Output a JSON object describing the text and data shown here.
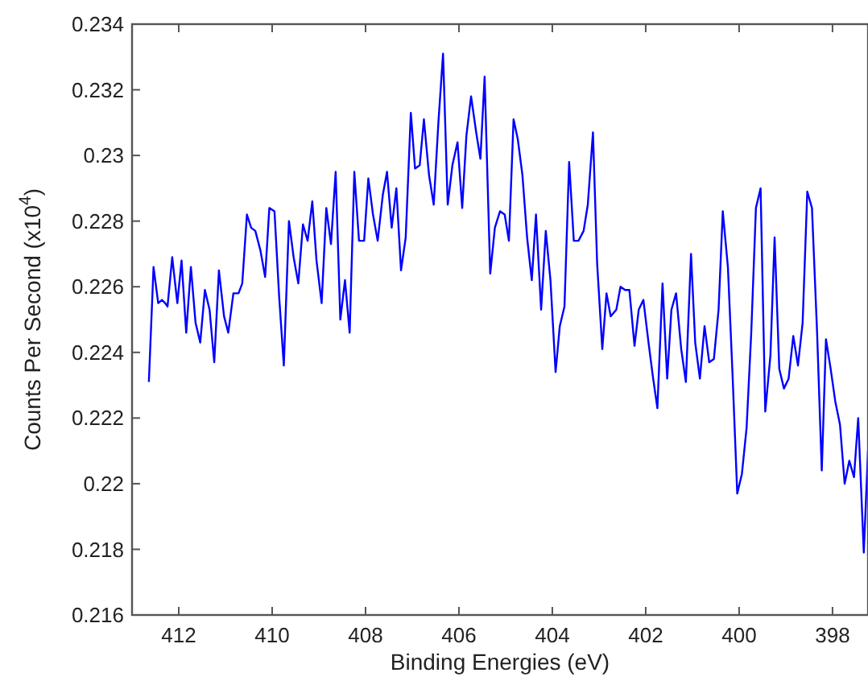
{
  "chart_data": {
    "type": "line",
    "xlabel": "Binding Energies (eV)",
    "ylabel": "Counts Per Second (x10$^{4}$)",
    "xlim": [
      413,
      397.24
    ],
    "xticks": [
      412,
      410,
      408,
      406,
      404,
      402,
      400,
      398
    ],
    "ylim": [
      0.216,
      0.234
    ],
    "yticks": [
      0.216,
      0.218,
      0.22,
      0.222,
      0.224,
      0.226,
      0.228,
      0.23,
      0.232,
      0.234
    ],
    "grid": false,
    "marker": "none",
    "line_style": "solid",
    "series": [
      {
        "color": "#0000ff",
        "x": [
          412.64,
          412.54,
          412.44,
          412.36,
          412.29,
          412.24,
          412.14,
          412.03,
          411.94,
          411.84,
          411.74,
          411.64,
          411.54,
          411.44,
          411.34,
          411.24,
          411.14,
          411.03,
          410.94,
          410.83,
          410.72,
          410.64,
          410.54,
          410.45,
          410.36,
          410.25,
          410.15,
          410.06,
          409.95,
          409.85,
          409.75,
          409.64,
          409.54,
          409.44,
          409.34,
          409.24,
          409.14,
          409.05,
          408.94,
          408.84,
          408.74,
          408.64,
          408.54,
          408.44,
          408.34,
          408.24,
          408.14,
          408.03,
          407.94,
          407.84,
          407.74,
          407.63,
          407.54,
          407.44,
          407.34,
          407.24,
          407.14,
          407.03,
          406.94,
          406.84,
          406.75,
          406.64,
          406.54,
          406.44,
          406.34,
          406.24,
          406.14,
          406.03,
          405.93,
          405.84,
          405.74,
          405.63,
          405.54,
          405.45,
          405.33,
          405.23,
          405.12,
          405.02,
          404.93,
          404.83,
          404.74,
          404.64,
          404.54,
          404.44,
          404.35,
          404.24,
          404.14,
          404.04,
          403.93,
          403.84,
          403.74,
          403.64,
          403.54,
          403.44,
          403.33,
          403.24,
          403.13,
          403.04,
          402.93,
          402.84,
          402.75,
          402.63,
          402.54,
          402.44,
          402.35,
          402.24,
          402.15,
          402.05,
          401.94,
          401.85,
          401.75,
          401.64,
          401.54,
          401.45,
          401.35,
          401.24,
          401.14,
          401.03,
          400.94,
          400.84,
          400.74,
          400.64,
          400.54,
          400.44,
          400.35,
          400.24,
          400.14,
          400.04,
          399.94,
          399.84,
          399.74,
          399.64,
          399.54,
          399.44,
          399.33,
          399.24,
          399.14,
          399.04,
          398.94,
          398.84,
          398.74,
          398.64,
          398.54,
          398.44,
          398.33,
          398.23,
          398.14,
          398.04,
          397.94,
          397.84,
          397.74,
          397.64,
          397.54,
          397.45,
          397.33,
          397.24
        ],
        "values": [
          0.2231,
          0.2266,
          0.2255,
          0.2256,
          0.2255,
          0.2254,
          0.2269,
          0.2255,
          0.2268,
          0.2246,
          0.2266,
          0.2249,
          0.2243,
          0.2259,
          0.2253,
          0.2237,
          0.2265,
          0.2251,
          0.2246,
          0.2258,
          0.2258,
          0.2261,
          0.2282,
          0.2278,
          0.2277,
          0.2271,
          0.2263,
          0.2284,
          0.2283,
          0.2257,
          0.2236,
          0.228,
          0.2269,
          0.2261,
          0.2279,
          0.2274,
          0.2286,
          0.2268,
          0.2255,
          0.2284,
          0.2273,
          0.2295,
          0.225,
          0.2262,
          0.2246,
          0.2295,
          0.2274,
          0.2274,
          0.2293,
          0.2282,
          0.2274,
          0.2288,
          0.2295,
          0.2278,
          0.229,
          0.2265,
          0.2275,
          0.2313,
          0.2296,
          0.2297,
          0.2311,
          0.2294,
          0.2285,
          0.231,
          0.2331,
          0.2285,
          0.2297,
          0.2304,
          0.2284,
          0.2306,
          0.2318,
          0.2307,
          0.2299,
          0.2324,
          0.2264,
          0.2278,
          0.2283,
          0.2282,
          0.2274,
          0.2311,
          0.2305,
          0.2294,
          0.2275,
          0.2262,
          0.2282,
          0.2253,
          0.2277,
          0.2262,
          0.2234,
          0.2248,
          0.2254,
          0.2298,
          0.2274,
          0.2274,
          0.2277,
          0.2285,
          0.2307,
          0.2267,
          0.2241,
          0.2258,
          0.2251,
          0.2253,
          0.226,
          0.2259,
          0.2259,
          0.2242,
          0.2253,
          0.2256,
          0.2243,
          0.2233,
          0.2223,
          0.2261,
          0.2232,
          0.2253,
          0.2258,
          0.2241,
          0.2231,
          0.227,
          0.2243,
          0.2232,
          0.2248,
          0.2237,
          0.2238,
          0.2253,
          0.2283,
          0.2266,
          0.2233,
          0.2197,
          0.2203,
          0.2217,
          0.2246,
          0.2284,
          0.229,
          0.2222,
          0.2239,
          0.2275,
          0.2235,
          0.2229,
          0.2232,
          0.2245,
          0.2236,
          0.2249,
          0.2289,
          0.2284,
          0.2246,
          0.2204,
          0.2244,
          0.2235,
          0.2225,
          0.2218,
          0.22,
          0.2207,
          0.2202,
          0.222,
          0.2179,
          0.221
        ]
      }
    ]
  }
}
